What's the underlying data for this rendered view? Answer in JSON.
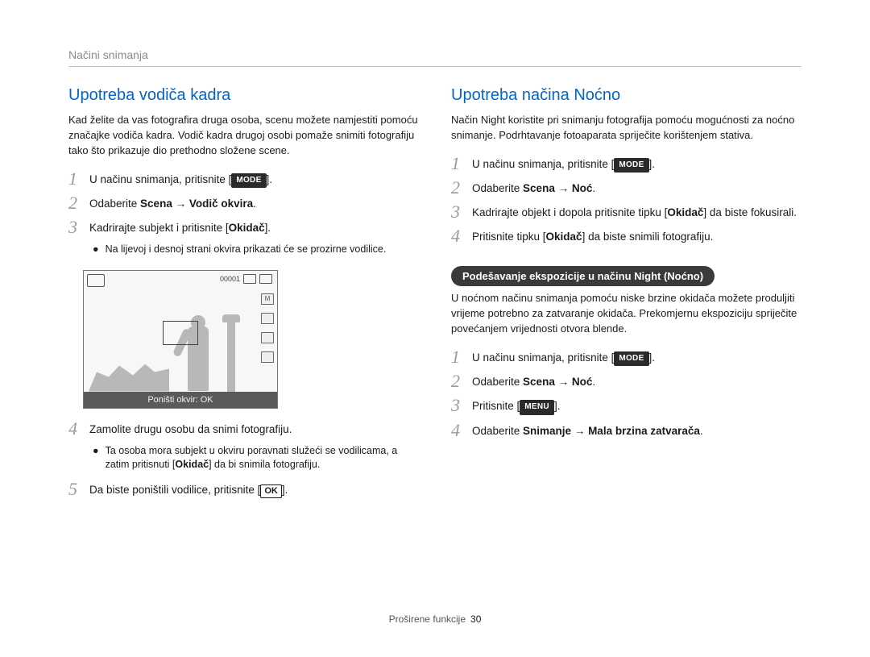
{
  "header": {
    "section": "Načini snimanja"
  },
  "footer": {
    "label": "Proširene funkcije",
    "page": "30"
  },
  "colors": {
    "title_left": "#0066cc",
    "title_right": "#0066cc"
  },
  "left": {
    "title": "Upotreba vodiča kadra",
    "intro": "Kad želite da vas fotografira druga osoba, scenu možete namjestiti pomoću značajke vodiča kadra. Vodič kadra drugoj osobi pomaže snimiti fotografiju tako što prikazuje dio prethodno složene scene.",
    "s1_a": "U načinu snimanja, pritisnite [",
    "s1_b": "].",
    "s2_a": "Odaberite ",
    "s2_b": "Scena → Vodič okvira",
    "s2_c": ".",
    "s3_a": "Kadrirajte subjekt i pritisnite [",
    "s3_b": "Okidač",
    "s3_c": "].",
    "s3_sub": "Na lijevoj i desnoj strani okvira prikazati će se prozirne vodilice.",
    "lcd_counter": "00001",
    "lcd_footer": "Poništi okvir: OK",
    "s4_a": "Zamolite drugu osobu da snimi fotografiju.",
    "s4_sub_a": "Ta osoba mora subjekt u okviru poravnati služeći se vodilicama, a zatim pritisnuti [",
    "s4_sub_b": "Okidač",
    "s4_sub_c": "] da bi snimila fotografiju.",
    "s5_a": "Da biste poništili vodilice, pritisnite [",
    "s5_b": "].",
    "mode_label": "MODE",
    "ok_label": "OK"
  },
  "right": {
    "title": "Upotreba načina Noćno",
    "intro": "Način Night koristite pri snimanju fotografija pomoću mogućnosti za noćno snimanje. Podrhtavanje fotoaparata spriječite korištenjem stativa.",
    "s1_a": "U načinu snimanja, pritisnite [",
    "s1_b": "].",
    "s2_a": "Odaberite ",
    "s2_b": "Scena → Noć",
    "s2_c": ".",
    "s3_a": "Kadrirajte objekt i dopola pritisnite tipku [",
    "s3_b": "Okidač",
    "s3_c": "] da biste fokusirali.",
    "s4_a": "Pritisnite tipku [",
    "s4_b": "Okidač",
    "s4_c": "] da biste snimili fotografiju.",
    "pill": "Podešavanje ekspozicije u načinu Night (Noćno)",
    "intro2": "U noćnom načinu snimanja pomoću niske brzine okidača možete produljiti vrijeme potrebno za zatvaranje okidača. Prekomjernu ekspoziciju spriječite povećanjem vrijednosti otvora blende.",
    "b1_a": "U načinu snimanja, pritisnite [",
    "b1_b": "].",
    "b2_a": "Odaberite ",
    "b2_b": "Scena → Noć",
    "b2_c": ".",
    "b3_a": "Pritisnite [",
    "b3_b": "].",
    "b4_a": "Odaberite ",
    "b4_b": "Snimanje → Mala brzina zatvarača",
    "b4_c": ".",
    "mode_label": "MODE",
    "menu_label": "MENU"
  }
}
